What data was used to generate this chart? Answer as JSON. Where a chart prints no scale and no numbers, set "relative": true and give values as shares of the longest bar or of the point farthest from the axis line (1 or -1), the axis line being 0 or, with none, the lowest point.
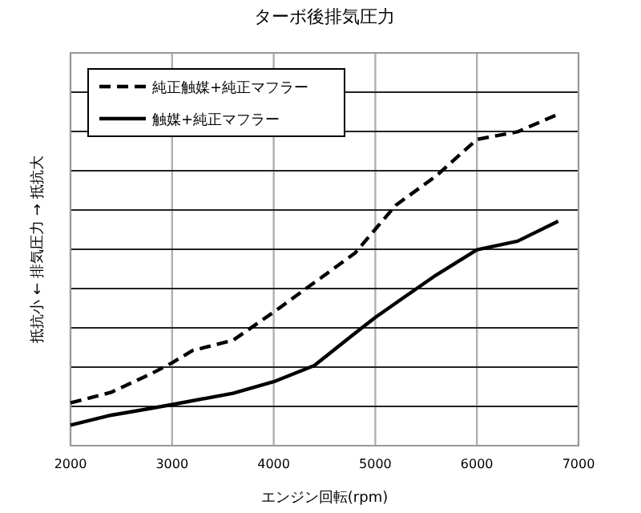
{
  "chart_data": {
    "type": "line",
    "title": "ターボ後排気圧力",
    "xlabel": "エンジン回転(rpm)",
    "ylabel": "抵抗小 ← 排気圧力 → 抵抗大",
    "relative": true,
    "xlim": [
      2000,
      7000
    ],
    "xticks": [
      2000,
      3000,
      4000,
      5000,
      6000,
      7000
    ],
    "grid": true,
    "legend": "top left",
    "series": [
      {
        "name": "純正触媒+純正マフラー",
        "color": "#000000",
        "line_style": "dashed",
        "x": [
          2000,
          2400,
          2800,
          3000,
          3200,
          3600,
          4000,
          4400,
          4800,
          5000,
          5200,
          5600,
          6000,
          6400,
          6800
        ],
        "values": [
          0.129,
          0.161,
          0.218,
          0.25,
          0.287,
          0.318,
          0.403,
          0.492,
          0.581,
          0.653,
          0.725,
          0.814,
          0.924,
          0.947,
          1
        ]
      },
      {
        "name": "触媒+純正マフラー",
        "color": "#000000",
        "line_style": "solid",
        "x": [
          2000,
          2400,
          2800,
          3000,
          3600,
          4000,
          4400,
          4800,
          5000,
          5200,
          5600,
          6000,
          6400,
          6800
        ],
        "values": [
          0.062,
          0.092,
          0.113,
          0.124,
          0.158,
          0.193,
          0.242,
          0.339,
          0.387,
          0.43,
          0.515,
          0.591,
          0.617,
          0.677
        ]
      }
    ]
  }
}
